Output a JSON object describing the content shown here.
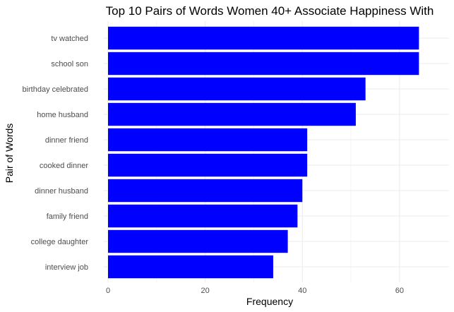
{
  "chart_data": {
    "type": "bar",
    "orientation": "horizontal",
    "title": "Top 10 Pairs of Words Women 40+ Associate Happiness With",
    "xlabel": "Frequency",
    "ylabel": "Pair of Words",
    "categories": [
      "tv watched",
      "school son",
      "birthday celebrated",
      "home husband",
      "dinner friend",
      "cooked dinner",
      "dinner husband",
      "family friend",
      "college daughter",
      "interview job"
    ],
    "values": [
      64,
      64,
      53,
      51,
      41,
      41,
      40,
      39,
      37,
      34
    ],
    "xlim": [
      0,
      67
    ],
    "xticks": [
      0,
      20,
      40,
      60
    ],
    "grid": true,
    "legend": "none",
    "bar_color": "#0000ff",
    "grid_color": "#ebebeb"
  }
}
